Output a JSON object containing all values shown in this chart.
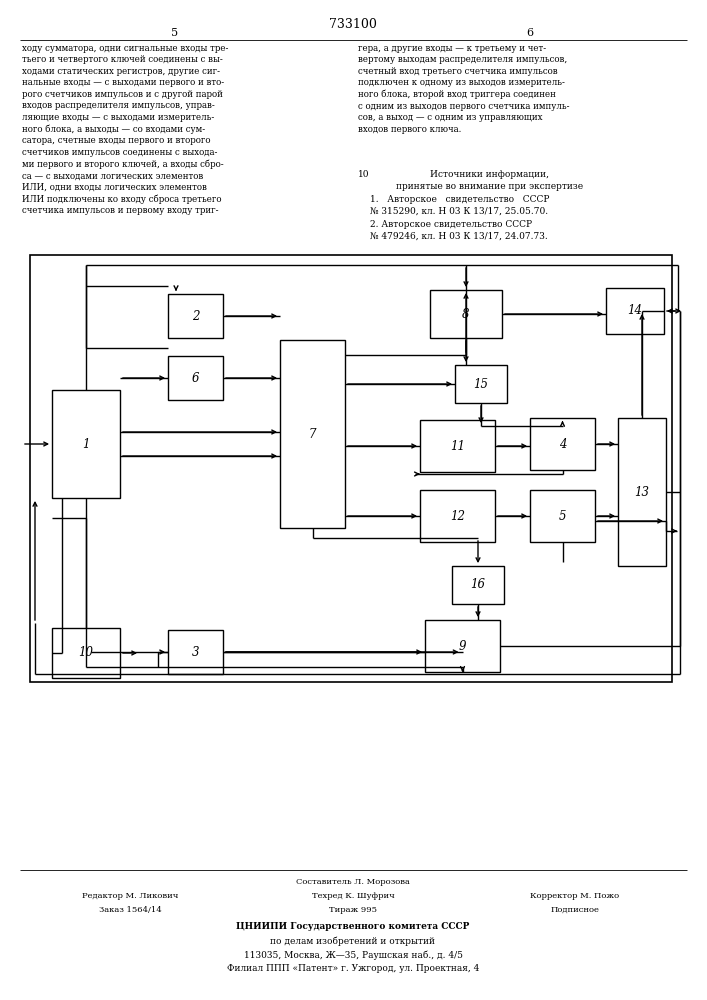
{
  "title": "733100",
  "page_num_left": "5",
  "page_num_right": "6",
  "bg": "#ffffff",
  "lc": "#000000",
  "tc": "#000000",
  "left_text": "ходу сумматора, одни сигнальные входы тре-\nтьего и четвертого ключей соединены с вы-\nходами статических регистров, другие сиг-\nнальные входы — с выходами первого и вто-\nрого счетчиков импульсов и с другой парой\nвходов распределителя импульсов, управ-\nляющие входы — с выходами измеритель-\nного блока, а выходы — со входами сум-\nсатора, счетные входы первого и второго\nсчетчиков импульсов соединены с выхода-\nми первого и второго ключей, а входы сбро-\nса — с выходами логических элементов\nИЛИ, одни входы логических элементов\nИЛИ подключены ко входу сброса третьего\nсчетчика импульсов и первому входу триг-",
  "right_text": "гера, а другие входы — к третьему и чет-\nвертому выходам распределителя импульсов,\nсчетный вход третьего счетчика импульсов\nподключен к одному из выходов измеритель-\nного блока, второй вход триггера соединен\nс одним из выходов первого счетчика импуль-\nсов, а выход — с одним из управляющих\nвходов первого ключа.",
  "sources_head": "Источники информации,\nпринятые во внимание при экспертизе",
  "col_num": "10",
  "source1": "1.   Авторское   свидетельство   СССР\n№ 315290, кл. Н 03 К 13/17, 25.05.70.",
  "source2": "2. Авторское свидетельство СССР\n№ 479246, кл. Н 03 К 13/17, 24.07.73.",
  "f1": "Составитель Л. Морозова",
  "f2l": "Редактор М. Ликович",
  "f2m": "Техред К. Шуфрич",
  "f2r": "Корректор М. Пожо",
  "f3l": "Заказ 1564/14",
  "f3m": "Тираж 995",
  "f3r": "Подписное",
  "f4": "ЦНИИПИ Государственного комитета СССР",
  "f5": "по делам изобретений и открытий",
  "f6": "113035, Москва, Ж—35, Раушская наб., д. 4/5",
  "f7": "Филиал ППП «Патент» г. Ужгород, ул. Проектная, 4"
}
